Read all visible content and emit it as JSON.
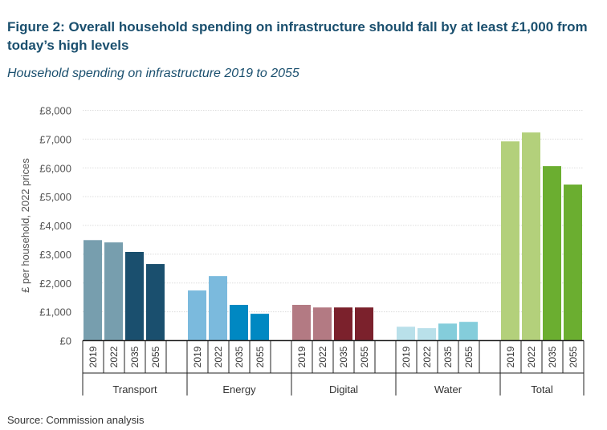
{
  "title": "Figure 2: Overall household spending on infrastructure should fall by at least £1,000 from today’s high levels",
  "subtitle": "Household spending on infrastructure 2019 to 2055",
  "source": "Source: Commission analysis",
  "chart_data": {
    "type": "bar",
    "ylabel": "£ per household, 2022 prices",
    "ylim": [
      0,
      8000
    ],
    "yticks": [
      "£0",
      "£1,000",
      "£2,000",
      "£3,000",
      "£4,000",
      "£5,000",
      "£6,000",
      "£7,000",
      "£8,000"
    ],
    "grid": true,
    "years": [
      "2019",
      "2022",
      "2035",
      "2055"
    ],
    "groups": [
      {
        "name": "Transport",
        "values": [
          3490,
          3410,
          3080,
          2660
        ],
        "colors": [
          "#779eae",
          "#779eae",
          "#1a4f6e",
          "#1a4f6e"
        ]
      },
      {
        "name": "Energy",
        "values": [
          1740,
          2240,
          1240,
          930
        ],
        "colors": [
          "#7bbadd",
          "#7bbadd",
          "#0088c2",
          "#0088c2"
        ]
      },
      {
        "name": "Digital",
        "values": [
          1240,
          1150,
          1150,
          1150
        ],
        "colors": [
          "#b37a83",
          "#b37a83",
          "#7b212c",
          "#7b212c"
        ]
      },
      {
        "name": "Water",
        "values": [
          480,
          430,
          590,
          650
        ],
        "colors": [
          "#b9e0ea",
          "#b9e0ea",
          "#84cddb",
          "#84cddb"
        ]
      },
      {
        "name": "Total",
        "values": [
          6920,
          7230,
          6060,
          5420
        ],
        "colors": [
          "#b3d07b",
          "#b3d07b",
          "#6bae30",
          "#6bae30"
        ]
      }
    ]
  }
}
